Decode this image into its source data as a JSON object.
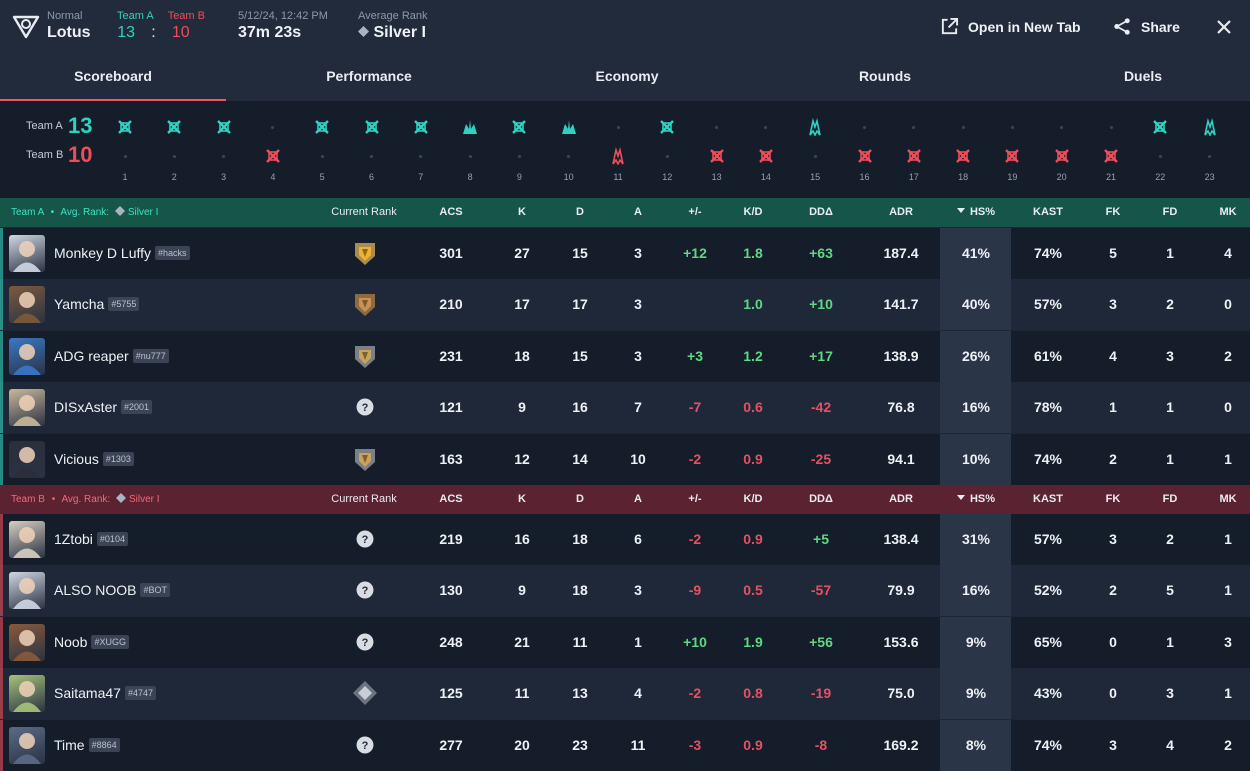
{
  "header": {
    "mode_label": "Normal",
    "map": "Lotus",
    "teamA_label": "Team A",
    "teamB_label": "Team B",
    "teamA_score": "13",
    "colon": ":",
    "teamB_score": "10",
    "datetime": "5/12/24, 12:42 PM",
    "duration": "37m 23s",
    "avg_rank_label": "Average Rank",
    "avg_rank": "Silver I",
    "open_new_tab": "Open in New Tab",
    "share": "Share"
  },
  "tabs": [
    "Scoreboard",
    "Performance",
    "Economy",
    "Rounds",
    "Duels"
  ],
  "timeline": {
    "teamA_label": "Team A",
    "teamB_label": "Team B",
    "teamA_score": "13",
    "teamB_score": "10",
    "rounds": [
      {
        "n": "1",
        "winner": "A",
        "icon": "elimination"
      },
      {
        "n": "2",
        "winner": "A",
        "icon": "elimination"
      },
      {
        "n": "3",
        "winner": "A",
        "icon": "elimination"
      },
      {
        "n": "4",
        "winner": "B",
        "icon": "elimination"
      },
      {
        "n": "5",
        "winner": "A",
        "icon": "elimination"
      },
      {
        "n": "6",
        "winner": "A",
        "icon": "elimination"
      },
      {
        "n": "7",
        "winner": "A",
        "icon": "elimination"
      },
      {
        "n": "8",
        "winner": "A",
        "icon": "detonate"
      },
      {
        "n": "9",
        "winner": "A",
        "icon": "elimination"
      },
      {
        "n": "10",
        "winner": "A",
        "icon": "detonate"
      },
      {
        "n": "11",
        "winner": "B",
        "icon": "defuse"
      },
      {
        "n": "12",
        "winner": "A",
        "icon": "elimination"
      },
      {
        "n": "13",
        "winner": "B",
        "icon": "elimination"
      },
      {
        "n": "14",
        "winner": "B",
        "icon": "elimination"
      },
      {
        "n": "15",
        "winner": "A",
        "icon": "defuse"
      },
      {
        "n": "16",
        "winner": "B",
        "icon": "elimination"
      },
      {
        "n": "17",
        "winner": "B",
        "icon": "elimination"
      },
      {
        "n": "18",
        "winner": "B",
        "icon": "elimination"
      },
      {
        "n": "19",
        "winner": "B",
        "icon": "elimination"
      },
      {
        "n": "20",
        "winner": "B",
        "icon": "elimination"
      },
      {
        "n": "21",
        "winner": "B",
        "icon": "elimination"
      },
      {
        "n": "22",
        "winner": "A",
        "icon": "elimination"
      },
      {
        "n": "23",
        "winner": "A",
        "icon": "defuse"
      }
    ]
  },
  "columns": [
    "Current Rank",
    "ACS",
    "K",
    "D",
    "A",
    "+/-",
    "K/D",
    "DDΔ",
    "ADR",
    "HS%",
    "KAST",
    "FK",
    "FD",
    "MK"
  ],
  "teamA": {
    "label": "Team A",
    "avg_rank_label": "Avg. Rank:",
    "avg_rank": "Silver I",
    "color": "#1f8a75",
    "players": [
      {
        "name": "Monkey D Luffy",
        "tag": "#hacks",
        "rank_icon": "gold-rank-icon",
        "acs": "301",
        "k": "27",
        "d": "15",
        "a": "3",
        "pm": "+12",
        "kd": "1.8",
        "dd": "+63",
        "adr": "187.4",
        "hs": "41%",
        "kast": "74%",
        "fk": "5",
        "fd": "1",
        "mk": "4",
        "avatar": "#cfd8e3"
      },
      {
        "name": "Yamcha",
        "tag": "#5755",
        "rank_icon": "bronze-rank-icon",
        "acs": "210",
        "k": "17",
        "d": "17",
        "a": "3",
        "pm": "",
        "kd": "1.0",
        "dd": "+10",
        "adr": "141.7",
        "hs": "40%",
        "kast": "57%",
        "fk": "3",
        "fd": "2",
        "mk": "0",
        "avatar": "#7d5a3c"
      },
      {
        "name": "ADG reaper",
        "tag": "#nu777",
        "rank_icon": "silver-rank-icon",
        "acs": "231",
        "k": "18",
        "d": "15",
        "a": "3",
        "pm": "+3",
        "kd": "1.2",
        "dd": "+17",
        "adr": "138.9",
        "hs": "26%",
        "kast": "61%",
        "fk": "4",
        "fd": "3",
        "mk": "2",
        "avatar": "#3b78c7"
      },
      {
        "name": "DISxAster",
        "tag": "#2001",
        "rank_icon": "unranked-icon",
        "acs": "121",
        "k": "9",
        "d": "16",
        "a": "7",
        "pm": "-7",
        "kd": "0.6",
        "dd": "-42",
        "adr": "76.8",
        "hs": "16%",
        "kast": "78%",
        "fk": "1",
        "fd": "1",
        "mk": "0",
        "avatar": "#c9b99a"
      },
      {
        "name": "Vicious",
        "tag": "#1303",
        "rank_icon": "silver-rank-icon",
        "acs": "163",
        "k": "12",
        "d": "14",
        "a": "10",
        "pm": "-2",
        "kd": "0.9",
        "dd": "-25",
        "adr": "94.1",
        "hs": "10%",
        "kast": "74%",
        "fk": "2",
        "fd": "1",
        "mk": "1",
        "avatar": "#2b2f3a"
      }
    ]
  },
  "teamB": {
    "label": "Team B",
    "avg_rank_label": "Avg. Rank:",
    "avg_rank": "Silver I",
    "color": "#8a2a3d",
    "players": [
      {
        "name": "1Ztobi",
        "tag": "#0104",
        "rank_icon": "unranked-icon",
        "acs": "219",
        "k": "16",
        "d": "18",
        "a": "6",
        "pm": "-2",
        "kd": "0.9",
        "dd": "+5",
        "adr": "138.4",
        "hs": "31%",
        "kast": "57%",
        "fk": "3",
        "fd": "2",
        "mk": "1",
        "avatar": "#d8cfc0"
      },
      {
        "name": "ALSO NOOB",
        "tag": "#BOT",
        "rank_icon": "unranked-icon",
        "acs": "130",
        "k": "9",
        "d": "18",
        "a": "3",
        "pm": "-9",
        "kd": "0.5",
        "dd": "-57",
        "adr": "79.9",
        "hs": "16%",
        "kast": "52%",
        "fk": "2",
        "fd": "5",
        "mk": "1",
        "avatar": "#cfd8e3"
      },
      {
        "name": "Noob",
        "tag": "#XUGG",
        "rank_icon": "unranked-icon",
        "acs": "248",
        "k": "21",
        "d": "11",
        "a": "1",
        "pm": "+10",
        "kd": "1.9",
        "dd": "+56",
        "adr": "153.6",
        "hs": "9%",
        "kast": "65%",
        "fk": "0",
        "fd": "1",
        "mk": "3",
        "avatar": "#8a5a3a"
      },
      {
        "name": "Saitama47",
        "tag": "#4747",
        "rank_icon": "iron-rank-icon",
        "acs": "125",
        "k": "11",
        "d": "13",
        "a": "4",
        "pm": "-2",
        "kd": "0.8",
        "dd": "-19",
        "adr": "75.0",
        "hs": "9%",
        "kast": "43%",
        "fk": "0",
        "fd": "3",
        "mk": "1",
        "avatar": "#a7c47a"
      },
      {
        "name": "Time",
        "tag": "#8864",
        "rank_icon": "unranked-icon",
        "acs": "277",
        "k": "20",
        "d": "23",
        "a": "11",
        "pm": "-3",
        "kd": "0.9",
        "dd": "-8",
        "adr": "169.2",
        "hs": "8%",
        "kast": "74%",
        "fk": "3",
        "fd": "4",
        "mk": "2",
        "avatar": "#5b6b86"
      }
    ]
  },
  "colors": {
    "teamA": "#2ed3c0",
    "teamB": "#ef4d5a",
    "positive": "#5fd882",
    "negative": "#e45262",
    "accent_tab": "#f0575f"
  }
}
